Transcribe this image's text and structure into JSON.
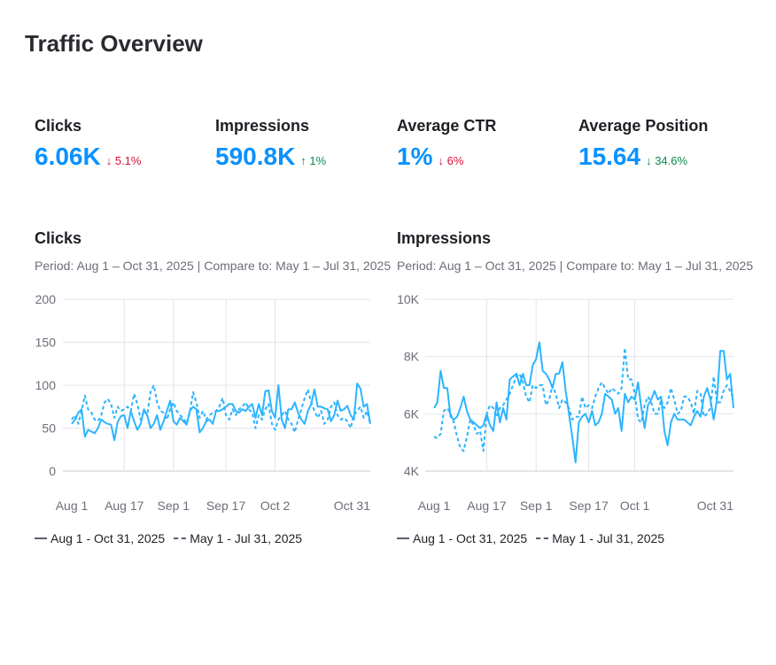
{
  "title": "Traffic Overview",
  "colors": {
    "accent": "#0a91ff",
    "line": "#2cb4ff",
    "down": "#d1133a",
    "up": "#0b8a4d",
    "grid": "#e3e4ea"
  },
  "kpis": [
    {
      "label": "Clicks",
      "value": "6.06K",
      "delta": "5.1%",
      "direction": "down",
      "arrow": "↓"
    },
    {
      "label": "Impressions",
      "value": "590.8K",
      "delta": "1%",
      "direction": "up",
      "arrow": "↑"
    },
    {
      "label": "Average CTR",
      "value": "1%",
      "delta": "6%",
      "direction": "down",
      "arrow": "↓"
    },
    {
      "label": "Average Position",
      "value": "15.64",
      "delta": "34.6%",
      "direction": "up",
      "arrow": "↓"
    }
  ],
  "chart_data": [
    {
      "type": "line",
      "title": "Clicks",
      "subtitle": "Period: Aug 1 – Oct 31, 2025 | Compare to: May 1 – Jul 31, 2025",
      "ylim": [
        0,
        200
      ],
      "yticks": [
        "0",
        "50",
        "100",
        "150",
        "200"
      ],
      "ytick_values": [
        0,
        50,
        100,
        150,
        200
      ],
      "xticks": [
        {
          "label": "Aug 1",
          "day": 0
        },
        {
          "label": "Aug 17",
          "day": 16
        },
        {
          "label": "Sep 1",
          "day": 31
        },
        {
          "label": "Sep 17",
          "day": 47
        },
        {
          "label": "Oct 2",
          "day": 62
        },
        {
          "label": "Oct 31",
          "day": 91
        }
      ],
      "grid": true,
      "legend": "bottom",
      "series": [
        {
          "name": "Aug 1 - Oct 31, 2025",
          "style": "solid",
          "values": [
            55,
            60,
            68,
            72,
            40,
            48,
            46,
            44,
            50,
            60,
            57,
            55,
            54,
            36,
            57,
            64,
            65,
            50,
            70,
            58,
            48,
            55,
            72,
            65,
            50,
            55,
            65,
            48,
            58,
            70,
            82,
            58,
            54,
            62,
            58,
            54,
            70,
            75,
            72,
            45,
            50,
            58,
            60,
            55,
            70,
            70,
            72,
            75,
            78,
            78,
            70,
            68,
            72,
            70,
            75,
            78,
            62,
            78,
            65,
            93,
            94,
            70,
            62,
            100,
            60,
            50,
            72,
            72,
            80,
            68,
            60,
            55,
            70,
            78,
            95,
            75,
            75,
            73,
            72,
            58,
            65,
            82,
            70,
            72,
            76,
            65,
            60,
            102,
            96,
            75,
            78,
            55
          ]
        },
        {
          "name": "May 1 - Jul 31, 2025",
          "style": "dashed",
          "values": [
            60,
            65,
            55,
            70,
            88,
            72,
            68,
            60,
            58,
            65,
            80,
            84,
            78,
            62,
            75,
            70,
            72,
            75,
            70,
            90,
            78,
            60,
            70,
            65,
            92,
            100,
            80,
            70,
            68,
            60,
            72,
            80,
            70,
            65,
            62,
            55,
            68,
            92,
            80,
            62,
            70,
            60,
            65,
            68,
            70,
            75,
            85,
            65,
            60,
            72,
            65,
            72,
            75,
            80,
            72,
            68,
            50,
            65,
            60,
            72,
            78,
            55,
            48,
            60,
            65,
            70,
            60,
            55,
            45,
            60,
            72,
            85,
            95,
            80,
            70,
            62,
            70,
            55,
            60,
            75,
            80,
            65,
            60,
            62,
            58,
            50,
            65,
            70,
            75,
            62,
            70,
            55
          ]
        }
      ]
    },
    {
      "type": "line",
      "title": "Impressions",
      "subtitle": "Period: Aug 1 – Oct 31, 2025 | Compare to: May 1 – Jul 31, 2025",
      "ylim": [
        4000,
        10000
      ],
      "yticks": [
        "4K",
        "6K",
        "8K",
        "10K"
      ],
      "ytick_values": [
        4000,
        6000,
        8000,
        10000
      ],
      "xticks": [
        {
          "label": "Aug 1",
          "day": 0
        },
        {
          "label": "Aug 17",
          "day": 16
        },
        {
          "label": "Sep 1",
          "day": 31
        },
        {
          "label": "Sep 17",
          "day": 47
        },
        {
          "label": "Oct 1",
          "day": 61
        },
        {
          "label": "Oct 31",
          "day": 91
        }
      ],
      "grid": true,
      "legend": "bottom",
      "series": [
        {
          "name": "Aug 1 - Oct 31, 2025",
          "style": "solid",
          "values": [
            6200,
            6400,
            7500,
            6900,
            6900,
            5900,
            5800,
            5900,
            6200,
            6600,
            6100,
            5800,
            5700,
            5600,
            5500,
            5600,
            6000,
            5600,
            5400,
            6400,
            5700,
            6200,
            5800,
            7200,
            7300,
            7400,
            7000,
            7400,
            7000,
            7000,
            7700,
            7900,
            8500,
            7500,
            7400,
            7200,
            6900,
            7400,
            7400,
            7800,
            6800,
            6000,
            5200,
            4300,
            5700,
            5900,
            6000,
            5700,
            6100,
            5600,
            5700,
            6000,
            6700,
            6600,
            6500,
            6000,
            6200,
            5400,
            6700,
            6400,
            6600,
            6500,
            7100,
            6200,
            5500,
            6300,
            6500,
            6800,
            6500,
            6600,
            5400,
            4900,
            5700,
            6000,
            5800,
            5800,
            5800,
            5700,
            5600,
            5900,
            6100,
            5900,
            6600,
            6900,
            6500,
            5800,
            6500,
            8200,
            8200,
            7200,
            7400,
            6200
          ]
        },
        {
          "name": "May 1 - Jul 31, 2025",
          "style": "dashed",
          "values": [
            5200,
            5150,
            5300,
            6100,
            6200,
            6000,
            5700,
            5200,
            4800,
            4700,
            5200,
            5800,
            5600,
            5300,
            5400,
            4700,
            6000,
            6300,
            6200,
            5900,
            6200,
            6300,
            6500,
            6700,
            7000,
            7300,
            7400,
            7100,
            6600,
            6400,
            7000,
            6900,
            7000,
            7000,
            6300,
            6500,
            7000,
            6700,
            6200,
            6500,
            6400,
            6200,
            5800,
            5900,
            5900,
            6600,
            6200,
            6300,
            6200,
            6600,
            6900,
            7100,
            6900,
            6700,
            6900,
            6800,
            6700,
            6900,
            8300,
            7200,
            7200,
            6700,
            5800,
            5700,
            6300,
            6600,
            6400,
            6000,
            6000,
            6500,
            6200,
            6400,
            6900,
            6500,
            6000,
            6100,
            6600,
            6600,
            6400,
            6000,
            6800,
            6700,
            5900,
            6000,
            6200,
            7300,
            6400,
            6400,
            6800,
            7000,
            6800,
            6500
          ]
        }
      ]
    }
  ]
}
